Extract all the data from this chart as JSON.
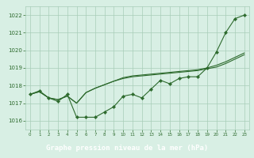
{
  "x": [
    0,
    1,
    2,
    3,
    4,
    5,
    6,
    7,
    8,
    9,
    10,
    11,
    12,
    13,
    14,
    15,
    16,
    17,
    18,
    19,
    20,
    21,
    22,
    23
  ],
  "line1": [
    1017.5,
    1017.7,
    1017.3,
    1017.1,
    1017.5,
    1016.2,
    1016.2,
    1016.2,
    1016.5,
    1016.8,
    1017.4,
    1017.5,
    1017.3,
    1017.8,
    1018.3,
    1018.1,
    1018.4,
    1018.5,
    1018.5,
    1019.0,
    1019.9,
    1021.0,
    1021.8,
    1022.0
  ],
  "line2": [
    1017.5,
    1017.65,
    1017.3,
    1017.2,
    1017.4,
    1017.0,
    1017.6,
    1017.85,
    1018.05,
    1018.25,
    1018.4,
    1018.5,
    1018.55,
    1018.6,
    1018.65,
    1018.7,
    1018.75,
    1018.8,
    1018.85,
    1018.95,
    1019.05,
    1019.25,
    1019.5,
    1019.75
  ],
  "line3": [
    1017.5,
    1017.65,
    1017.3,
    1017.2,
    1017.4,
    1017.0,
    1017.6,
    1017.85,
    1018.05,
    1018.25,
    1018.45,
    1018.55,
    1018.6,
    1018.65,
    1018.7,
    1018.75,
    1018.8,
    1018.85,
    1018.9,
    1019.0,
    1019.15,
    1019.35,
    1019.6,
    1019.85
  ],
  "line_color": "#2d6a2d",
  "bg_color": "#d8efe4",
  "grid_color": "#a8cdb8",
  "xlabel": "Graphe pression niveau de la mer (hPa)",
  "xlabel_bg": "#2d6a2d",
  "xlabel_fg": "#ffffff",
  "ylim": [
    1015.5,
    1022.5
  ],
  "xlim": [
    -0.5,
    23.5
  ],
  "yticks": [
    1016,
    1017,
    1018,
    1019,
    1020,
    1021,
    1022
  ],
  "xticks": [
    0,
    1,
    2,
    3,
    4,
    5,
    6,
    7,
    8,
    9,
    10,
    11,
    12,
    13,
    14,
    15,
    16,
    17,
    18,
    19,
    20,
    21,
    22,
    23
  ]
}
